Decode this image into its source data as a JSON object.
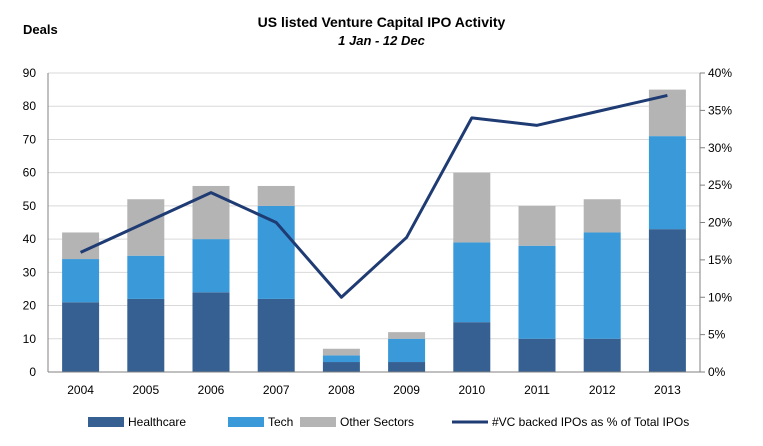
{
  "chart_data": {
    "type": "bar",
    "stacked": true,
    "title": "US listed Venture Capital IPO Activity",
    "subtitle": "1 Jan - 12 Dec",
    "ylabel": "Deals",
    "categories": [
      "2004",
      "2005",
      "2006",
      "2007",
      "2008",
      "2009",
      "2010",
      "2011",
      "2012",
      "2013"
    ],
    "ylim": [
      0,
      90
    ],
    "yticks": [
      "0",
      "10",
      "20",
      "30",
      "40",
      "50",
      "60",
      "70",
      "80",
      "90"
    ],
    "y2lim": [
      0,
      40
    ],
    "y2ticks": [
      "0%",
      "5%",
      "10%",
      "15%",
      "20%",
      "25%",
      "30%",
      "35%",
      "40%"
    ],
    "series": [
      {
        "name": "Healthcare",
        "type": "bar",
        "color": "#366092",
        "values": [
          21,
          22,
          24,
          22,
          3,
          3,
          15,
          10,
          10,
          43
        ]
      },
      {
        "name": "Tech",
        "type": "bar",
        "color": "#3A9AD9",
        "values": [
          13,
          13,
          16,
          28,
          2,
          7,
          24,
          28,
          32,
          28
        ]
      },
      {
        "name": "Other Sectors",
        "type": "bar",
        "color": "#B4B4B4",
        "values": [
          8,
          17,
          16,
          6,
          2,
          2,
          21,
          12,
          10,
          14
        ]
      },
      {
        "name": "#VC backed IPOs as % of Total IPOs",
        "type": "line",
        "axis": "right",
        "color": "#1F3B73",
        "values": [
          16,
          20,
          24,
          20,
          10,
          18,
          34,
          33,
          35,
          37
        ]
      }
    ],
    "grid": true,
    "legend_position": "bottom"
  }
}
